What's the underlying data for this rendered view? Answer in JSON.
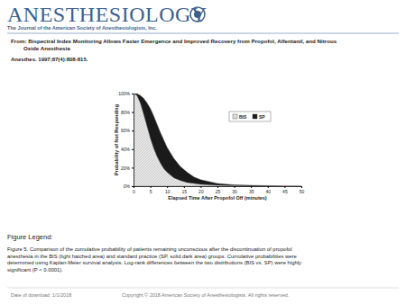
{
  "page": {
    "journal": "ANESTHESIOLOGY",
    "journal_subtitle": "The Journal of the American Society of Anesthesiologists, Inc.",
    "source_title": [
      "From: Bispectral Index Monitoring Allows Faster Emergence and Improved Recovery from Propofol, Alfentanil, and Nitrous",
      "Oxide Anesthesia"
    ],
    "citation": "Anesthes. 1997;87(4):808-815.",
    "legend_heading": "Figure Legend:",
    "legend_text": [
      "Figure 5. Comparison of the cumulative probability of patients remaining unconscious after the discontinuation of propofol",
      "anesthesia in the BIS (light hatched area) and standard practice (SP, solid dark area) groups. Cumulative probabilities were",
      "determined using Kaplan-Meier survival analysis. Log-rank differences between the two distributions (BIS vs. SP) were highly",
      "significant (P < 0.0001)."
    ],
    "download_date": "Date of download:  1/1/2018",
    "copyright": "Copyright © 2018 American Society of Anesthesiologists. All rights reserved."
  },
  "chart_data": {
    "type": "area",
    "x_label": "Elapsed Time After Propofol Off (minutes)",
    "y_label": "Probability of Not Responding",
    "x": [
      0,
      1,
      2,
      3,
      4,
      5,
      6,
      7,
      8,
      9,
      10,
      12,
      14,
      16,
      18,
      20,
      25,
      30,
      35,
      40,
      45,
      50
    ],
    "series": [
      {
        "name": "BIS",
        "color": "#e6e6e6",
        "values": [
          100,
          98,
          90,
          78,
          65,
          52,
          41,
          32,
          25,
          19,
          15,
          9,
          6,
          4,
          3,
          2,
          1,
          0.5,
          0,
          0,
          0,
          0
        ]
      },
      {
        "name": "SP",
        "color": "#1a1a1a",
        "values": [
          100,
          100,
          98,
          95,
          90,
          84,
          76,
          67,
          58,
          50,
          42,
          30,
          21,
          15,
          10,
          7,
          3,
          1.5,
          1,
          0.5,
          0,
          0
        ]
      }
    ],
    "xlim": [
      0,
      50
    ],
    "xticks": [
      0,
      5,
      10,
      15,
      20,
      25,
      30,
      35,
      40,
      45,
      50
    ],
    "ylim": [
      0,
      100
    ],
    "yticks": [
      {
        "value": 0,
        "label": "0%"
      },
      {
        "value": 20,
        "label": "20%"
      },
      {
        "value": 40,
        "label": "40%"
      },
      {
        "value": 60,
        "label": "60%"
      },
      {
        "value": 80,
        "label": "80%"
      },
      {
        "value": 100,
        "label": "100%"
      }
    ],
    "grid": false,
    "legend": "top-right"
  }
}
